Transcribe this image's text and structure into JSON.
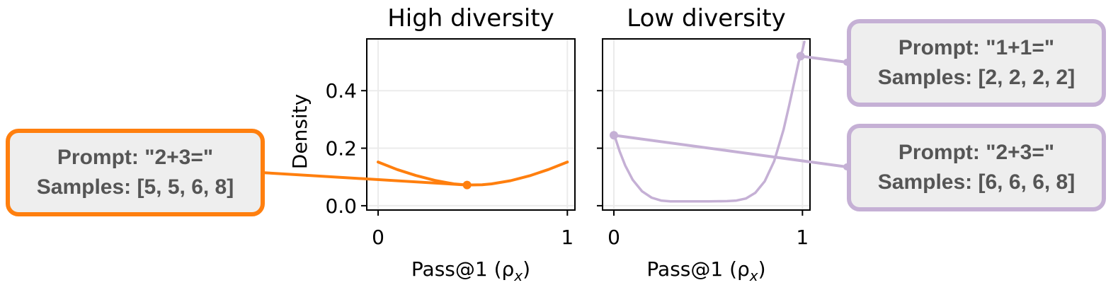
{
  "chart_data": [
    {
      "type": "line",
      "title": "High diversity",
      "xlabel": "Pass@1 (ρ",
      "xlabel_sub": "x",
      "xlabel_close": ")",
      "ylabel": "Density",
      "xlim": [
        -0.06,
        1.04
      ],
      "ylim": [
        -0.015,
        0.58
      ],
      "xticks": [
        0,
        1
      ],
      "xtick_labels": [
        "0",
        "1"
      ],
      "yticks": [
        0.0,
        0.2,
        0.4
      ],
      "ytick_labels": [
        "0.0",
        "0.2",
        "0.4"
      ],
      "grid": true,
      "color": "#ff7f0e",
      "curve": {
        "x": [
          0,
          0.1,
          0.2,
          0.3,
          0.4,
          0.47,
          0.55,
          0.6,
          0.7,
          0.8,
          0.9,
          1.0
        ],
        "y": [
          0.152,
          0.126,
          0.105,
          0.088,
          0.076,
          0.072,
          0.073,
          0.076,
          0.087,
          0.104,
          0.126,
          0.152
        ]
      },
      "marker": {
        "x": 0.47,
        "y": 0.072
      }
    },
    {
      "type": "line",
      "title": "Low diversity",
      "xlabel": "Pass@1 (ρ",
      "xlabel_sub": "x",
      "xlabel_close": ")",
      "xlim": [
        -0.06,
        1.04
      ],
      "ylim": [
        -0.015,
        0.58
      ],
      "xticks": [
        0,
        1
      ],
      "xtick_labels": [
        "0",
        "1"
      ],
      "yticks": [
        0.0,
        0.2,
        0.4
      ],
      "ytick_labels": [
        "",
        "",
        ""
      ],
      "grid": true,
      "color": "#c5b0d5",
      "curve": {
        "x": [
          0.0,
          0.03,
          0.06,
          0.1,
          0.15,
          0.2,
          0.25,
          0.3,
          0.4,
          0.5,
          0.6,
          0.65,
          0.7,
          0.75,
          0.8,
          0.85,
          0.9,
          0.93,
          0.96,
          0.98,
          1.0,
          1.01
        ],
        "y": [
          0.25,
          0.19,
          0.14,
          0.09,
          0.05,
          0.028,
          0.018,
          0.015,
          0.015,
          0.015,
          0.016,
          0.018,
          0.025,
          0.045,
          0.085,
          0.155,
          0.265,
          0.35,
          0.44,
          0.5,
          0.54,
          0.57
        ]
      },
      "markers": [
        {
          "x": 0.0,
          "y": 0.245
        },
        {
          "x": 0.99,
          "y": 0.52
        }
      ]
    }
  ],
  "callouts": [
    {
      "prompt": "Prompt: \"2+3=\"",
      "samples": "Samples: [5, 5, 6, 8]",
      "color": "#ff7f0e"
    },
    {
      "prompt": "Prompt: \"1+1=\"",
      "samples": "Samples: [2, 2, 2, 2]",
      "color": "#c5b0d5"
    },
    {
      "prompt": "Prompt: \"2+3=\"",
      "samples": "Samples: [6, 6, 6, 8]",
      "color": "#c5b0d5"
    }
  ]
}
